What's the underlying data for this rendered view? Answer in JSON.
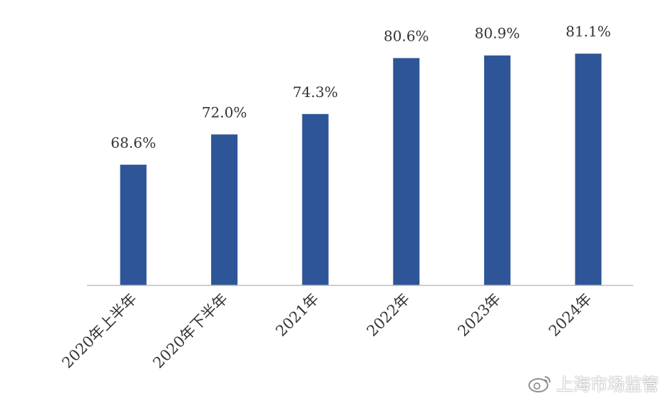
{
  "chart_data": {
    "type": "bar",
    "categories": [
      "2020年上半年",
      "2020年下半年",
      "2021年",
      "2022年",
      "2023年",
      "2024年"
    ],
    "values": [
      68.6,
      72.0,
      74.3,
      80.6,
      80.9,
      81.1
    ],
    "data_labels": [
      "68.6%",
      "72.0%",
      "74.3%",
      "80.6%",
      "80.9%",
      "81.1%"
    ],
    "title": "",
    "xlabel": "",
    "ylabel": "",
    "ylim": [
      55,
      84
    ],
    "grid": false,
    "legend": "none",
    "bar_color": "#2e5597",
    "axis_color": "#bfbfbf"
  },
  "watermark": {
    "icon": "weibo-icon",
    "text": "上海市场监管"
  }
}
